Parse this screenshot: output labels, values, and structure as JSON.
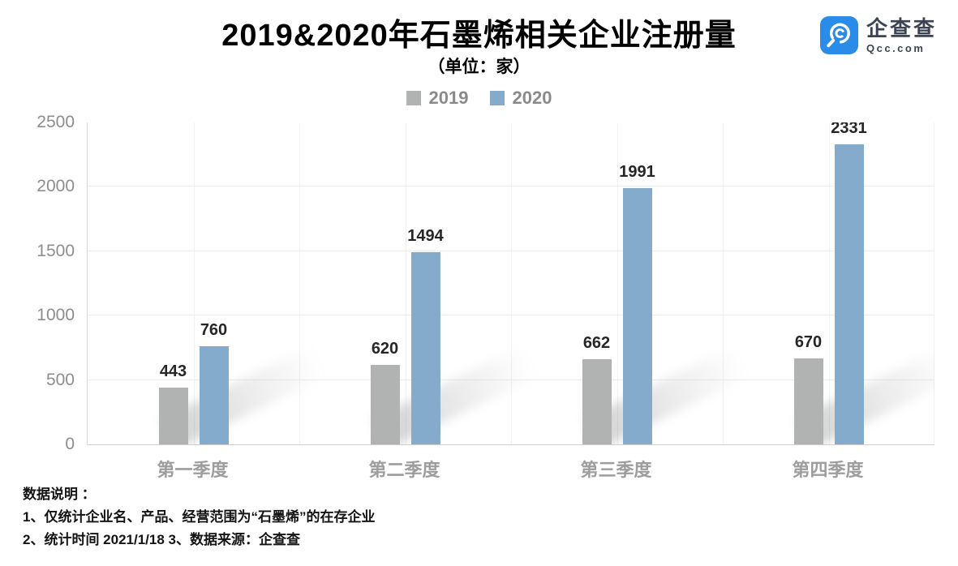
{
  "header": {
    "title": "2019&2020年石墨烯相关企业注册量",
    "subtitle": "（单位：家）"
  },
  "logo": {
    "name": "企查查",
    "domain": "Qcc.com",
    "brand_color": "#2a8ce8",
    "text_color": "#3b4354"
  },
  "chart_data": {
    "type": "bar",
    "title": "2019&2020年石墨烯相关企业注册量",
    "subtitle": "（单位：家）",
    "categories": [
      "第一季度",
      "第二季度",
      "第三季度",
      "第四季度"
    ],
    "series": [
      {
        "name": "2019",
        "color": "#b1b3b3",
        "values": [
          443,
          620,
          662,
          670
        ]
      },
      {
        "name": "2020",
        "color": "#85abcc",
        "values": [
          760,
          1494,
          1991,
          2331
        ]
      }
    ],
    "ylim": [
      0,
      2500
    ],
    "yticks": [
      0,
      500,
      1000,
      1500,
      2000,
      2500
    ],
    "grid": true,
    "legend_position": "top-center"
  },
  "colors": {
    "grid_h": "#ececec",
    "grid_v": "#f1f1f1",
    "axis": "#cfcfcf",
    "value_label": "#262626",
    "tick_label": "#8d8d8d",
    "category_label": "#9d9d9d",
    "legend_label": "#8a8a8a"
  },
  "footer": {
    "lines": [
      "数据说明 ：",
      "1、仅统计企业名、产品、经营范围为“石墨烯”的在存企业",
      "2、统计时间 2021/1/18   3、数据来源：企查查"
    ]
  }
}
